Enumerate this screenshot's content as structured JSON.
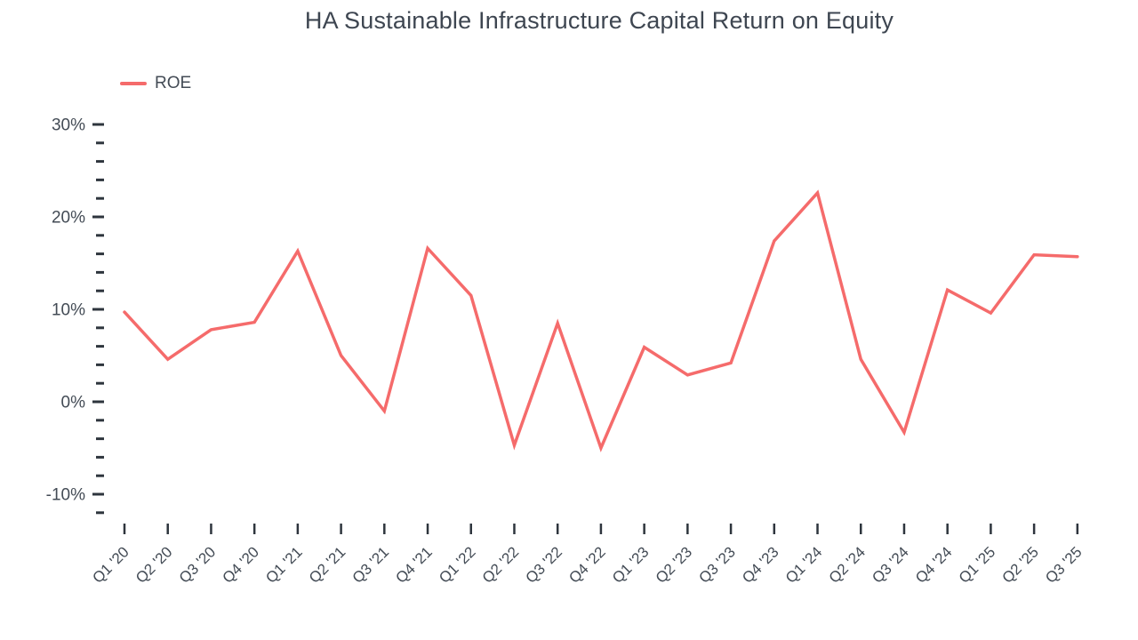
{
  "chart_data": {
    "type": "line",
    "title": "HA Sustainable Infrastructure Capital Return on Equity",
    "xlabel": "",
    "ylabel": "",
    "grid": false,
    "legend_position": "top-left",
    "categories": [
      "Q1 '20",
      "Q2 '20",
      "Q3 '20",
      "Q4 '20",
      "Q1 '21",
      "Q2 '21",
      "Q3 '21",
      "Q4 '21",
      "Q1 '22",
      "Q2 '22",
      "Q3 '22",
      "Q4 '22",
      "Q1 '23",
      "Q2 '23",
      "Q3 '23",
      "Q4 '23",
      "Q1 '24",
      "Q2 '24",
      "Q3 '24",
      "Q4 '24",
      "Q1 '25",
      "Q2 '25",
      "Q3 '25"
    ],
    "series": [
      {
        "name": "ROE",
        "color": "#F56B6B",
        "values": [
          9.7,
          4.6,
          7.8,
          8.6,
          16.3,
          5.0,
          -1.0,
          16.6,
          11.5,
          -4.7,
          8.5,
          -5.0,
          5.9,
          2.9,
          4.2,
          17.4,
          22.6,
          4.6,
          -3.3,
          12.1,
          9.6,
          15.9,
          15.7
        ]
      }
    ],
    "y_axis": {
      "min": -12,
      "max": 30,
      "minor_step": 2,
      "unit": "%",
      "major_ticks": [
        {
          "value": 30,
          "label": "30%"
        },
        {
          "value": 20,
          "label": "20%"
        },
        {
          "value": 10,
          "label": "10%"
        },
        {
          "value": 0,
          "label": "0%"
        },
        {
          "value": -10,
          "label": "-10%"
        }
      ]
    }
  },
  "colors": {
    "accent_line": "#F56B6B",
    "text": "#434B55",
    "tick": "#2e353d",
    "background": "#FFFFFF"
  }
}
